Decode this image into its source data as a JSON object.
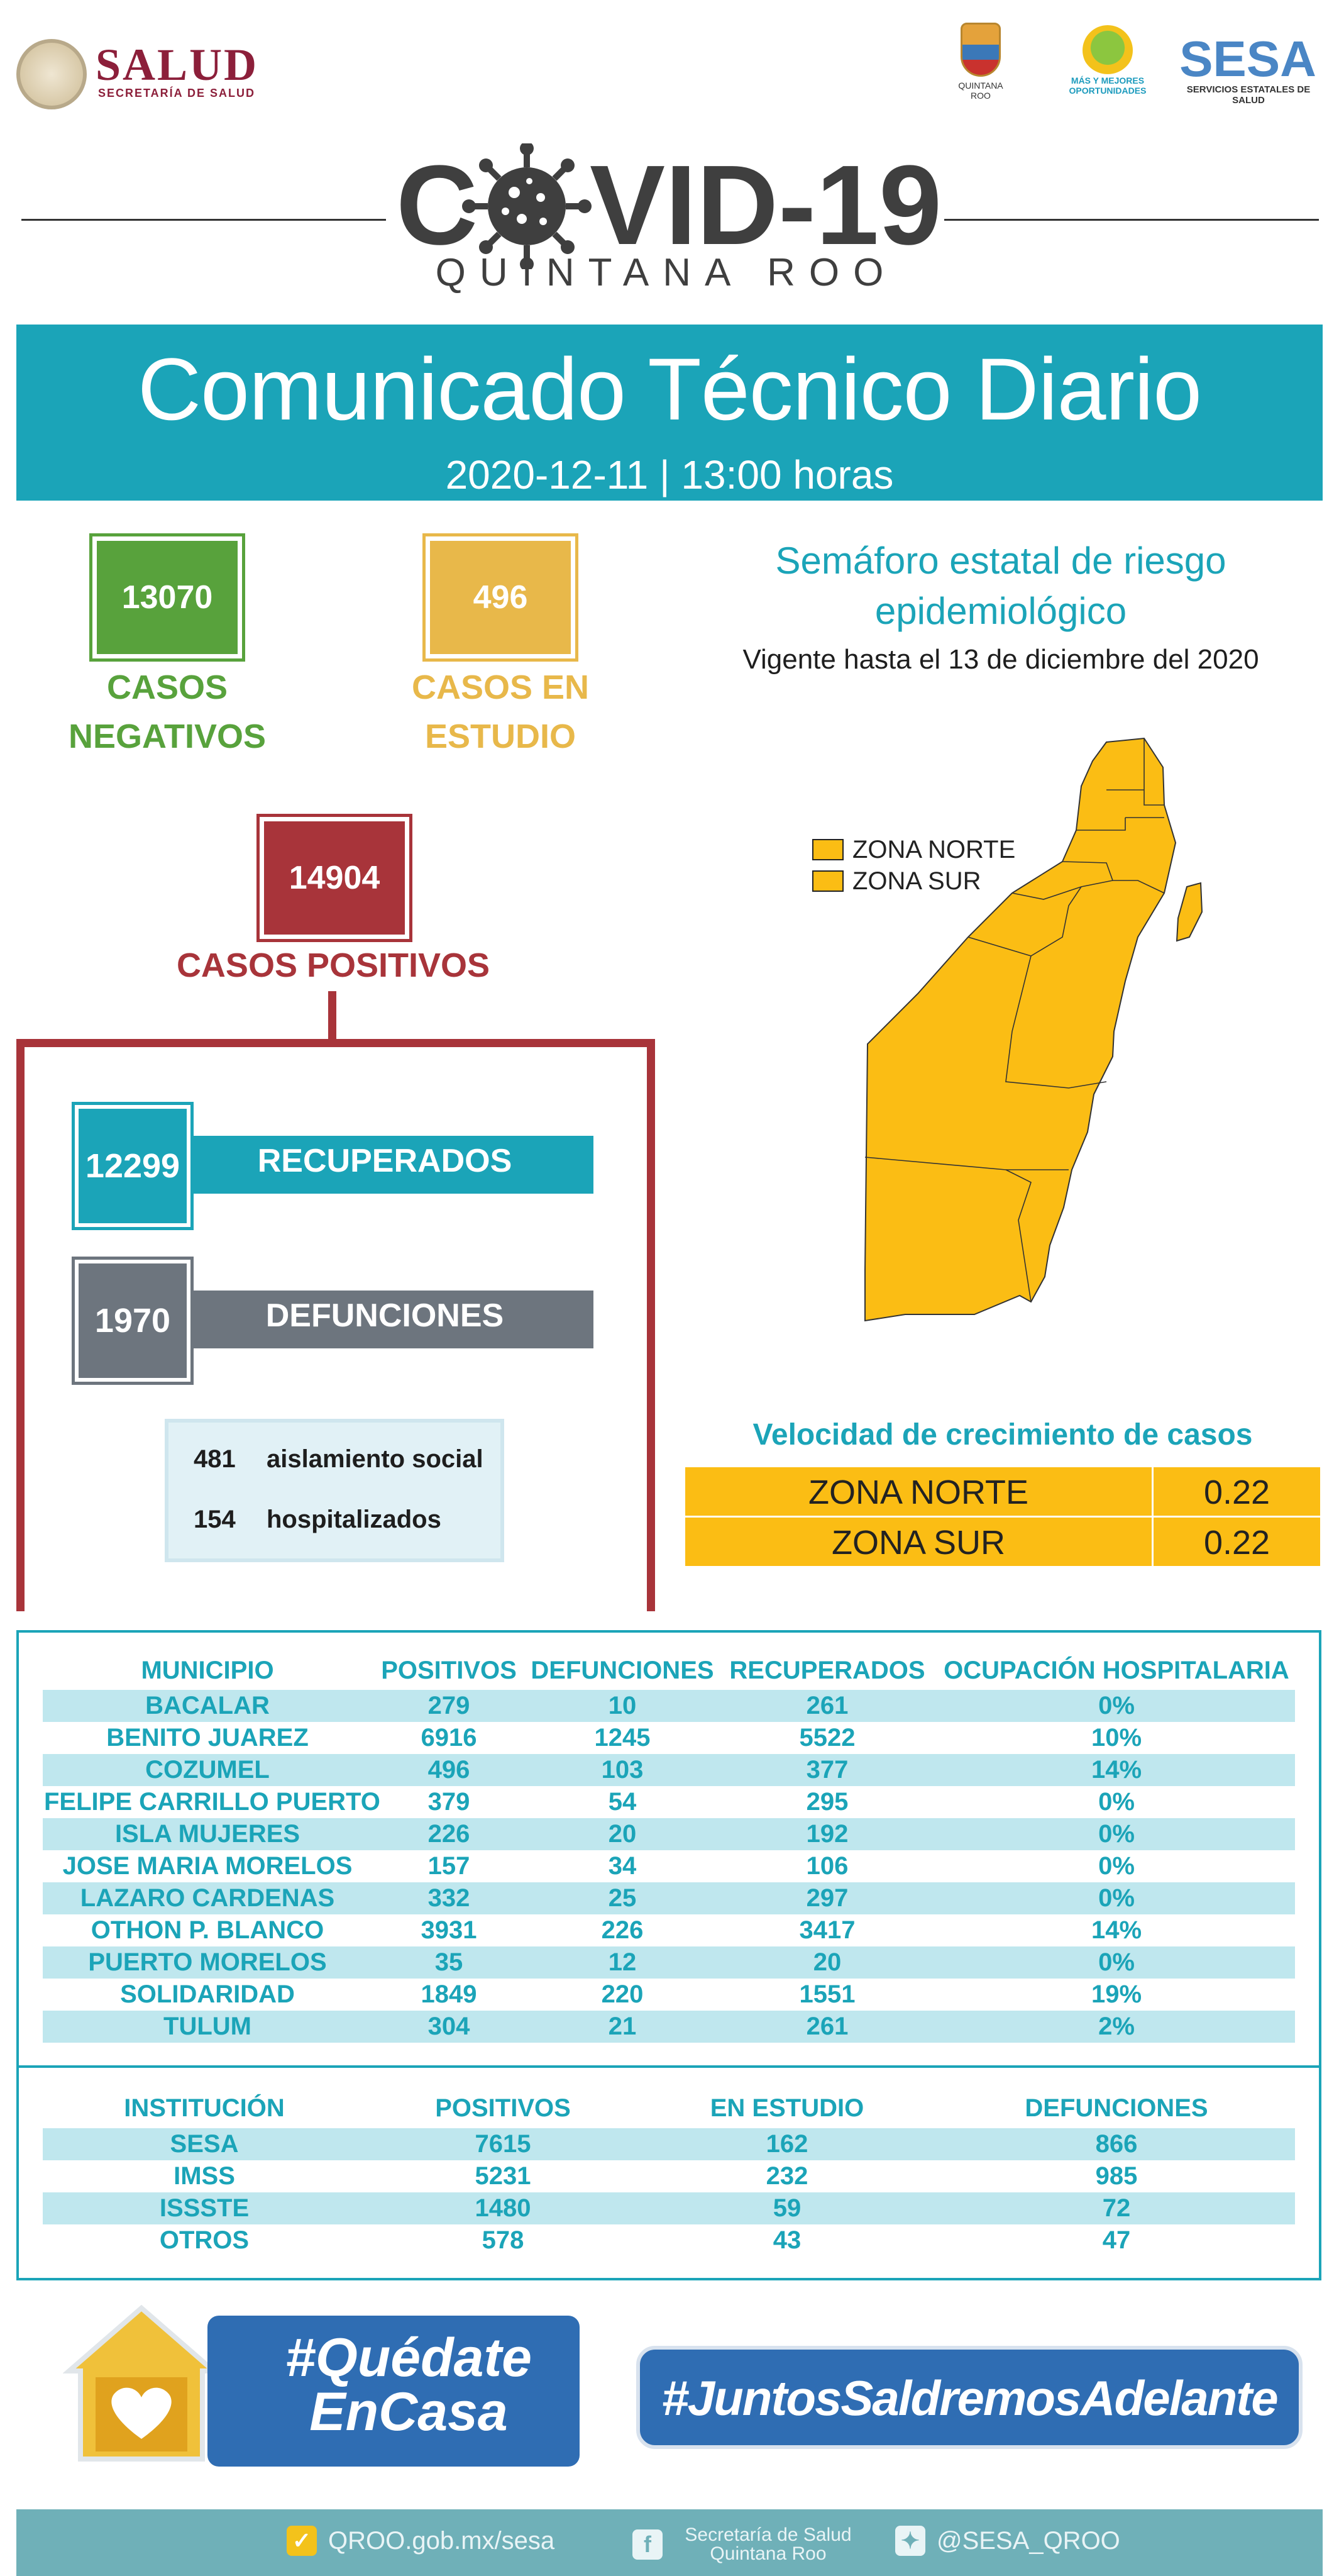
{
  "header": {
    "salud_title": "SALUD",
    "salud_subtitle": "SECRETARÍA DE SALUD",
    "qroo_logo_text": "QUINTANA ROO",
    "mm_logo_text": "MÁS Y MEJORES OPORTUNIDADES",
    "sesa_title": "SESA",
    "sesa_subtitle": "SERVICIOS ESTATALES DE SALUD"
  },
  "covid": {
    "title_left": "C",
    "title_right": "VID-19",
    "region": "QUINTANA ROO"
  },
  "banner": {
    "title": "Comunicado Técnico Diario",
    "date": "2020-12-11 | 13:00 horas"
  },
  "stats": {
    "negativos_value": "13070",
    "negativos_label": "CASOS NEGATIVOS",
    "estudio_value": "496",
    "estudio_label": "CASOS EN ESTUDIO",
    "positivos_value": "14904",
    "positivos_label": "CASOS POSITIVOS",
    "recuperados_value": "12299",
    "recuperados_label": "RECUPERADOS",
    "defunciones_value": "1970",
    "defunciones_label": "DEFUNCIONES",
    "aislamiento_value": "481",
    "aislamiento_label": "aislamiento social",
    "hospitalizados_value": "154",
    "hospitalizados_label": "hospitalizados"
  },
  "semaforo": {
    "title": "Semáforo estatal de riesgo epidemiológico",
    "subtitle": "Vigente hasta el 13 de diciembre del 2020",
    "legend": [
      "ZONA NORTE",
      "ZONA SUR"
    ],
    "zone_color": "#fbbd14"
  },
  "velocidad": {
    "title": "Velocidad de crecimiento de casos",
    "rows": [
      {
        "zona": "ZONA NORTE",
        "valor": "0.22"
      },
      {
        "zona": "ZONA SUR",
        "valor": "0.22"
      }
    ]
  },
  "municipios": {
    "headers": [
      "MUNICIPIO",
      "POSITIVOS",
      "DEFUNCIONES",
      "RECUPERADOS",
      "OCUPACIÓN HOSPITALARIA"
    ],
    "rows": [
      [
        "BACALAR",
        "279",
        "10",
        "261",
        "0%"
      ],
      [
        "BENITO JUAREZ",
        "6916",
        "1245",
        "5522",
        "10%"
      ],
      [
        "COZUMEL",
        "496",
        "103",
        "377",
        "14%"
      ],
      [
        "FELIPE CARRILLO PUERTO",
        "379",
        "54",
        "295",
        "0%"
      ],
      [
        "ISLA MUJERES",
        "226",
        "20",
        "192",
        "0%"
      ],
      [
        "JOSE MARIA MORELOS",
        "157",
        "34",
        "106",
        "0%"
      ],
      [
        "LAZARO CARDENAS",
        "332",
        "25",
        "297",
        "0%"
      ],
      [
        "OTHON P. BLANCO",
        "3931",
        "226",
        "3417",
        "14%"
      ],
      [
        "PUERTO MORELOS",
        "35",
        "12",
        "20",
        "0%"
      ],
      [
        "SOLIDARIDAD",
        "1849",
        "220",
        "1551",
        "19%"
      ],
      [
        "TULUM",
        "304",
        "21",
        "261",
        "2%"
      ]
    ]
  },
  "instituciones": {
    "headers": [
      "INSTITUCIÓN",
      "POSITIVOS",
      "EN ESTUDIO",
      "DEFUNCIONES"
    ],
    "rows": [
      [
        "SESA",
        "7615",
        "162",
        "866"
      ],
      [
        "IMSS",
        "5231",
        "232",
        "985"
      ],
      [
        "ISSSTE",
        "1480",
        "59",
        "72"
      ],
      [
        "OTROS",
        "578",
        "43",
        "47"
      ]
    ]
  },
  "campaigns": {
    "quedate_line1": "#Quédate",
    "quedate_line2": "EnCasa",
    "juntos": "#JuntosSaldremosAdelante"
  },
  "footer": {
    "web": "QROO.gob.mx/sesa",
    "facebook": "Secretaría de Salud Quintana Roo",
    "twitter": "@SESA_QROO"
  }
}
